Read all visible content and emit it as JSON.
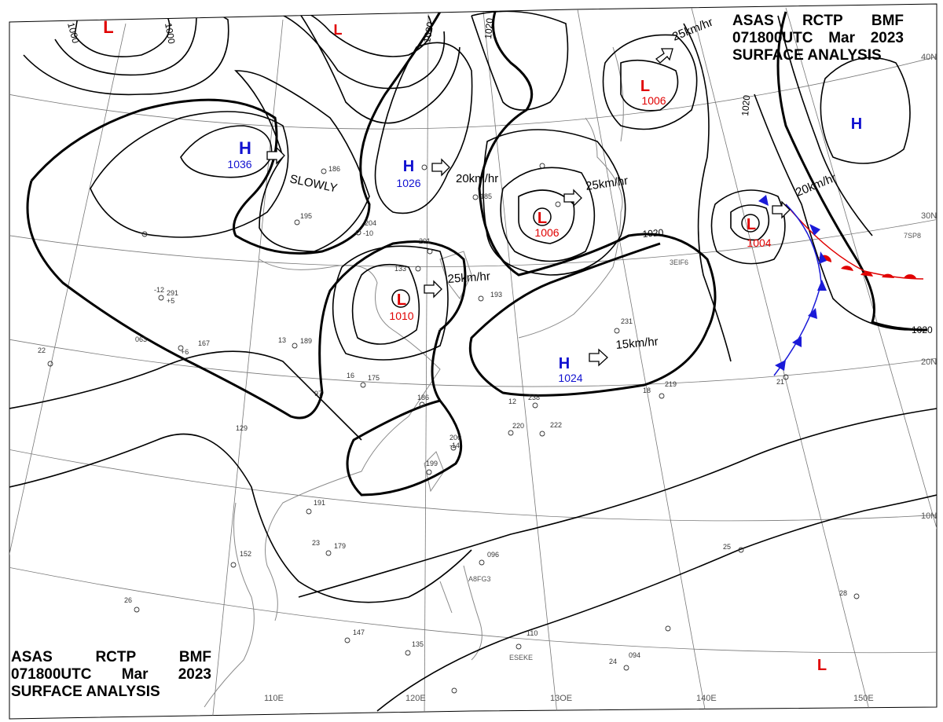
{
  "header": {
    "top_right": {
      "line1": [
        "ASAS",
        "RCTP",
        "BMF"
      ],
      "line2": [
        "071800UTC",
        "Mar",
        "2023"
      ],
      "line3": "SURFACE ANALYSIS"
    },
    "bottom_left": {
      "line1": [
        "ASAS",
        "RCTP",
        "BMF"
      ],
      "line2": [
        "071800UTC",
        "Mar",
        "2023"
      ],
      "line3": "SURFACE ANALYSIS"
    }
  },
  "pressure_systems": [
    {
      "type": "L",
      "value": "",
      "color": "#e00000"
    },
    {
      "type": "L",
      "value": "",
      "color": "#e00000"
    },
    {
      "type": "H",
      "value": "1036",
      "color": "#1010d0"
    },
    {
      "type": "H",
      "value": "1026",
      "color": "#1010d0"
    },
    {
      "type": "L",
      "value": "1006",
      "color": "#e00000"
    },
    {
      "type": "L",
      "value": "1006",
      "color": "#e00000"
    },
    {
      "type": "H",
      "value": "",
      "color": "#1010d0"
    },
    {
      "type": "L",
      "value": "1004",
      "color": "#e00000"
    },
    {
      "type": "L",
      "value": "1010",
      "color": "#e00000"
    },
    {
      "type": "H",
      "value": "1024",
      "color": "#1010d0"
    },
    {
      "type": "L",
      "value": "",
      "color": "#e00000"
    }
  ],
  "motion_labels": [
    "SLOWLY",
    "20km/hr",
    "25km/hr",
    "25km/hr",
    "20km/hr",
    "25km/hr",
    "15km/hr"
  ],
  "isobar_labels": [
    "1000",
    "1000",
    "1020",
    "1020",
    "1020",
    "1020",
    "1020"
  ],
  "lat_labels": [
    "40N",
    "30N",
    "20N",
    "10N"
  ],
  "lon_labels": [
    "110E",
    "120E",
    "13OE",
    "140E",
    "150E"
  ],
  "station_labels": [
    "3EIF6",
    "A8FG3",
    "7SP8",
    "ESEKE"
  ],
  "station_values": [
    "291",
    "189",
    "175",
    "186",
    "206",
    "199",
    "191",
    "179",
    "152",
    "147",
    "135",
    "110",
    "096",
    "094",
    "219",
    "222",
    "231",
    "238",
    "220",
    "193",
    "201",
    "185",
    "204",
    "195",
    "186",
    "133",
    "063",
    "167",
    "129",
    "97",
    "18",
    "13",
    "16",
    "12",
    "22",
    "23",
    "25",
    "26",
    "24",
    "28",
    "21",
    "-12",
    "+5",
    "-14",
    "-10",
    "+6"
  ],
  "colors": {
    "isobar": "#000000",
    "grid": "#666666",
    "coast": "#888888",
    "cold_front": "#1a1ad8",
    "warm_front": "#e00000",
    "high": "#1010d0",
    "low": "#e00000"
  }
}
